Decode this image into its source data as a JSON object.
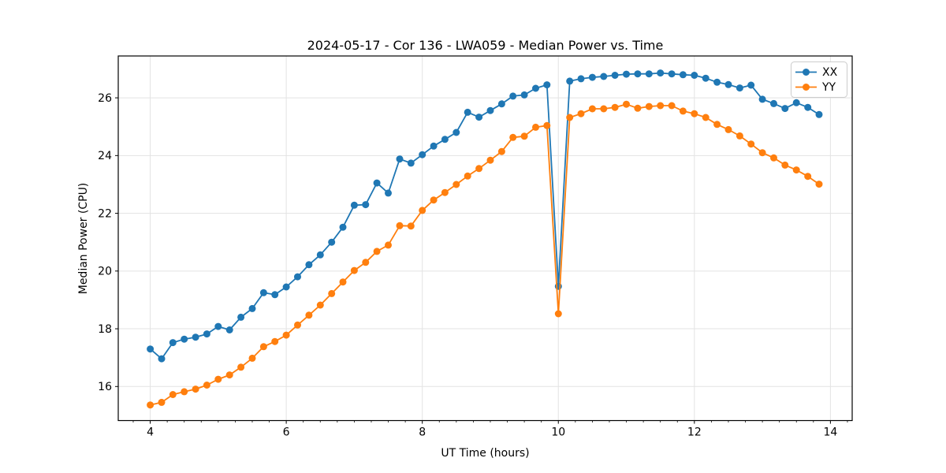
{
  "chart_data": {
    "type": "line",
    "title": "2024-05-17 - Cor 136 - LWA059 - Median Power vs. Time",
    "xlabel": "UT Time (hours)",
    "ylabel": "Median Power (CPU)",
    "xlim": [
      3.53,
      14.32
    ],
    "ylim": [
      14.82,
      27.45
    ],
    "xticks": [
      4,
      6,
      8,
      10,
      12,
      14
    ],
    "yticks": [
      16,
      18,
      20,
      22,
      24,
      26
    ],
    "x_minor_step": 0.25,
    "grid": true,
    "legend_position": "upper right",
    "x": [
      4.0,
      4.167,
      4.333,
      4.5,
      4.667,
      4.833,
      5.0,
      5.167,
      5.333,
      5.5,
      5.667,
      5.833,
      6.0,
      6.167,
      6.333,
      6.5,
      6.667,
      6.833,
      7.0,
      7.167,
      7.333,
      7.5,
      7.667,
      7.833,
      8.0,
      8.167,
      8.333,
      8.5,
      8.667,
      8.833,
      9.0,
      9.167,
      9.333,
      9.5,
      9.667,
      9.833,
      10.0,
      10.167,
      10.333,
      10.5,
      10.667,
      10.833,
      11.0,
      11.167,
      11.333,
      11.5,
      11.667,
      11.833,
      12.0,
      12.167,
      12.333,
      12.5,
      12.667,
      12.833,
      13.0,
      13.167,
      13.333,
      13.5,
      13.667,
      13.833
    ],
    "series": [
      {
        "name": "XX",
        "color": "#1f77b4",
        "values": [
          17.3,
          16.96,
          17.52,
          17.64,
          17.71,
          17.82,
          18.08,
          17.96,
          18.4,
          18.7,
          19.25,
          19.18,
          19.45,
          19.8,
          20.22,
          20.56,
          21.0,
          21.52,
          22.28,
          22.3,
          23.05,
          22.7,
          23.88,
          23.74,
          24.03,
          24.33,
          24.56,
          24.8,
          25.5,
          25.33,
          25.56,
          25.79,
          26.06,
          26.1,
          26.33,
          26.45,
          19.47,
          26.58,
          26.66,
          26.71,
          26.74,
          26.78,
          26.82,
          26.83,
          26.83,
          26.86,
          26.83,
          26.8,
          26.78,
          26.68,
          26.54,
          26.46,
          26.34,
          26.44,
          25.95,
          25.8,
          25.63,
          25.83,
          25.67,
          25.42
        ]
      },
      {
        "name": "YY",
        "color": "#ff7f0e",
        "values": [
          15.36,
          15.45,
          15.72,
          15.82,
          15.91,
          16.05,
          16.25,
          16.4,
          16.67,
          16.98,
          17.38,
          17.56,
          17.78,
          18.13,
          18.47,
          18.82,
          19.22,
          19.62,
          20.02,
          20.3,
          20.68,
          20.9,
          21.57,
          21.56,
          22.1,
          22.46,
          22.72,
          23.0,
          23.29,
          23.55,
          23.84,
          24.14,
          24.63,
          24.67,
          24.98,
          25.04,
          18.52,
          25.32,
          25.45,
          25.62,
          25.62,
          25.67,
          25.78,
          25.64,
          25.7,
          25.73,
          25.73,
          25.54,
          25.45,
          25.32,
          25.08,
          24.9,
          24.68,
          24.4,
          24.1,
          23.92,
          23.67,
          23.5,
          23.28,
          23.01
        ]
      }
    ],
    "styles": {
      "grid_color": "#e3e3e3",
      "spine_color": "#000000",
      "marker_radius": 4.5,
      "line_width": 1.8
    }
  }
}
